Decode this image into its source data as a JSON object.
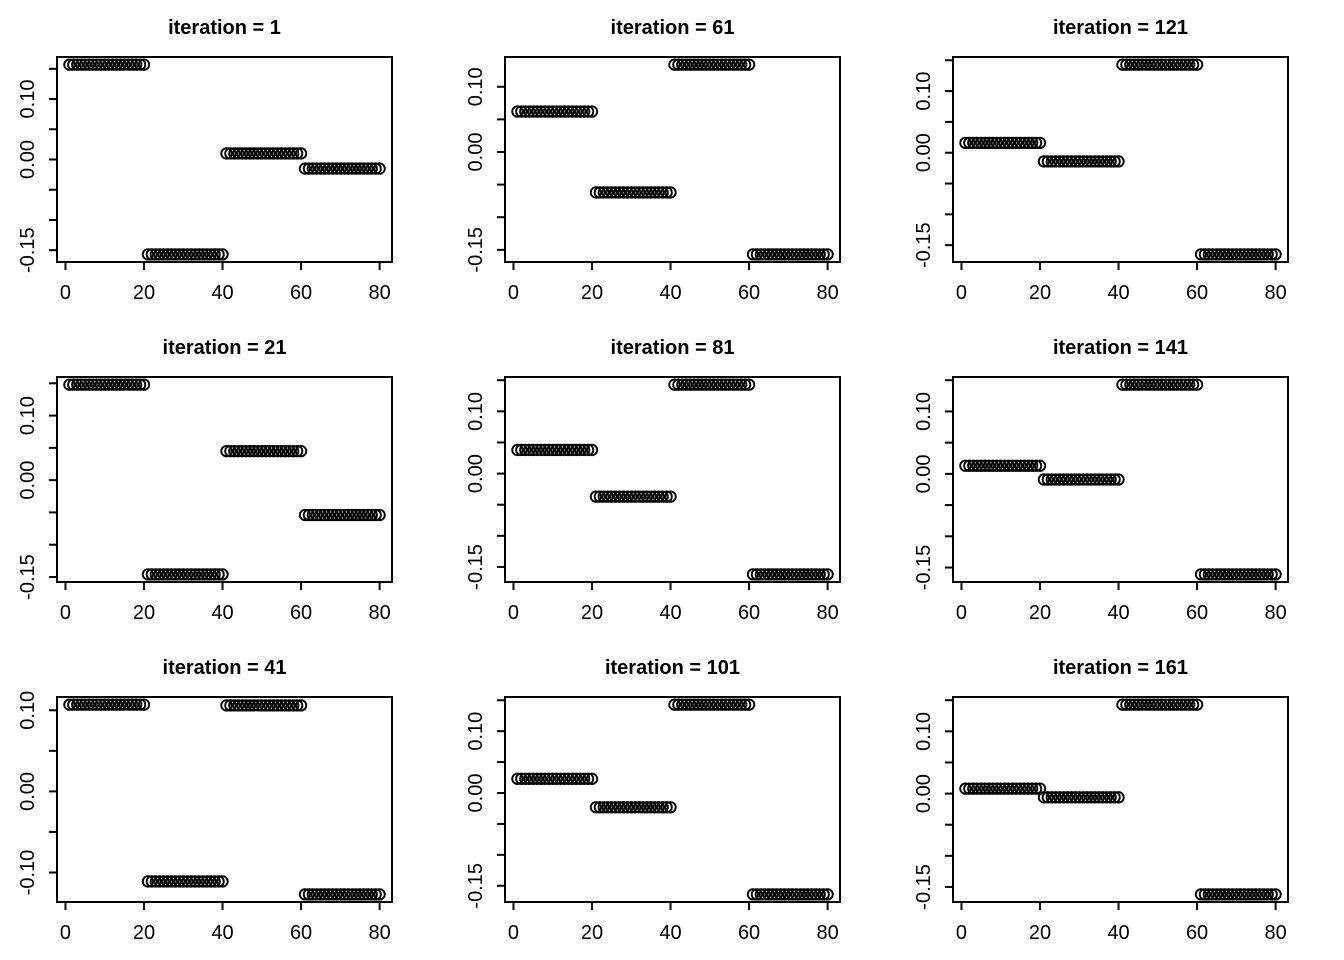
{
  "chart_data": {
    "type": "scatter",
    "description": "3x3 grid of R base-graphics panels, each showing a 4-level step function sampled as 80 open-circle points",
    "grid": {
      "rows": 3,
      "cols": 3
    },
    "marker": "open-circle",
    "colors": {
      "foreground": "#000000",
      "background": "#ffffff"
    },
    "x_ticks": [
      0,
      20,
      40,
      60,
      80
    ],
    "xlim": [
      -2.16,
      83.16
    ],
    "y_tick_step": 0.05,
    "ylim_pad_fraction": 0.04,
    "points_per_segment": 20,
    "segments_x": [
      [
        1,
        20
      ],
      [
        21,
        40
      ],
      [
        41,
        60
      ],
      [
        61,
        80
      ]
    ],
    "panels": [
      {
        "iteration": 1,
        "title": "iteration = 1",
        "levels": [
          0.157,
          -0.157,
          0.01,
          -0.015
        ],
        "y_labeled_ticks": [
          "0.10",
          "0.00",
          "-0.15"
        ]
      },
      {
        "iteration": 61,
        "title": "iteration = 61",
        "levels": [
          0.062,
          -0.062,
          0.134,
          -0.157
        ],
        "y_labeled_ticks": [
          "0.10",
          "0.00",
          "-0.15"
        ]
      },
      {
        "iteration": 121,
        "title": "iteration = 121",
        "levels": [
          0.016,
          -0.014,
          0.143,
          -0.165
        ],
        "y_labeled_ticks": [
          "0.10",
          "0.00",
          "-0.15"
        ]
      },
      {
        "iteration": 21,
        "title": "iteration = 21",
        "levels": [
          0.148,
          -0.146,
          0.045,
          -0.054
        ],
        "y_labeled_ticks": [
          "0.10",
          "0.00",
          "-0.15"
        ]
      },
      {
        "iteration": 81,
        "title": "iteration = 81",
        "levels": [
          0.038,
          -0.037,
          0.143,
          -0.162
        ],
        "y_labeled_ticks": [
          "0.10",
          "0.00",
          "-0.15"
        ]
      },
      {
        "iteration": 141,
        "title": "iteration = 141",
        "levels": [
          0.013,
          -0.009,
          0.143,
          -0.161
        ],
        "y_labeled_ticks": [
          "0.10",
          "0.00",
          "-0.15"
        ]
      },
      {
        "iteration": 41,
        "title": "iteration = 41",
        "levels": [
          0.107,
          -0.111,
          0.106,
          -0.127
        ],
        "y_labeled_ticks": [
          "0.10",
          "0.00",
          "-0.10"
        ]
      },
      {
        "iteration": 101,
        "title": "iteration = 101",
        "levels": [
          0.023,
          -0.023,
          0.143,
          -0.164
        ],
        "y_labeled_ticks": [
          "0.10",
          "0.00",
          "-0.15"
        ]
      },
      {
        "iteration": 161,
        "title": "iteration = 161",
        "levels": [
          0.008,
          -0.006,
          0.143,
          -0.162
        ],
        "y_labeled_ticks": [
          "0.10",
          "0.00",
          "-0.15"
        ]
      }
    ]
  }
}
